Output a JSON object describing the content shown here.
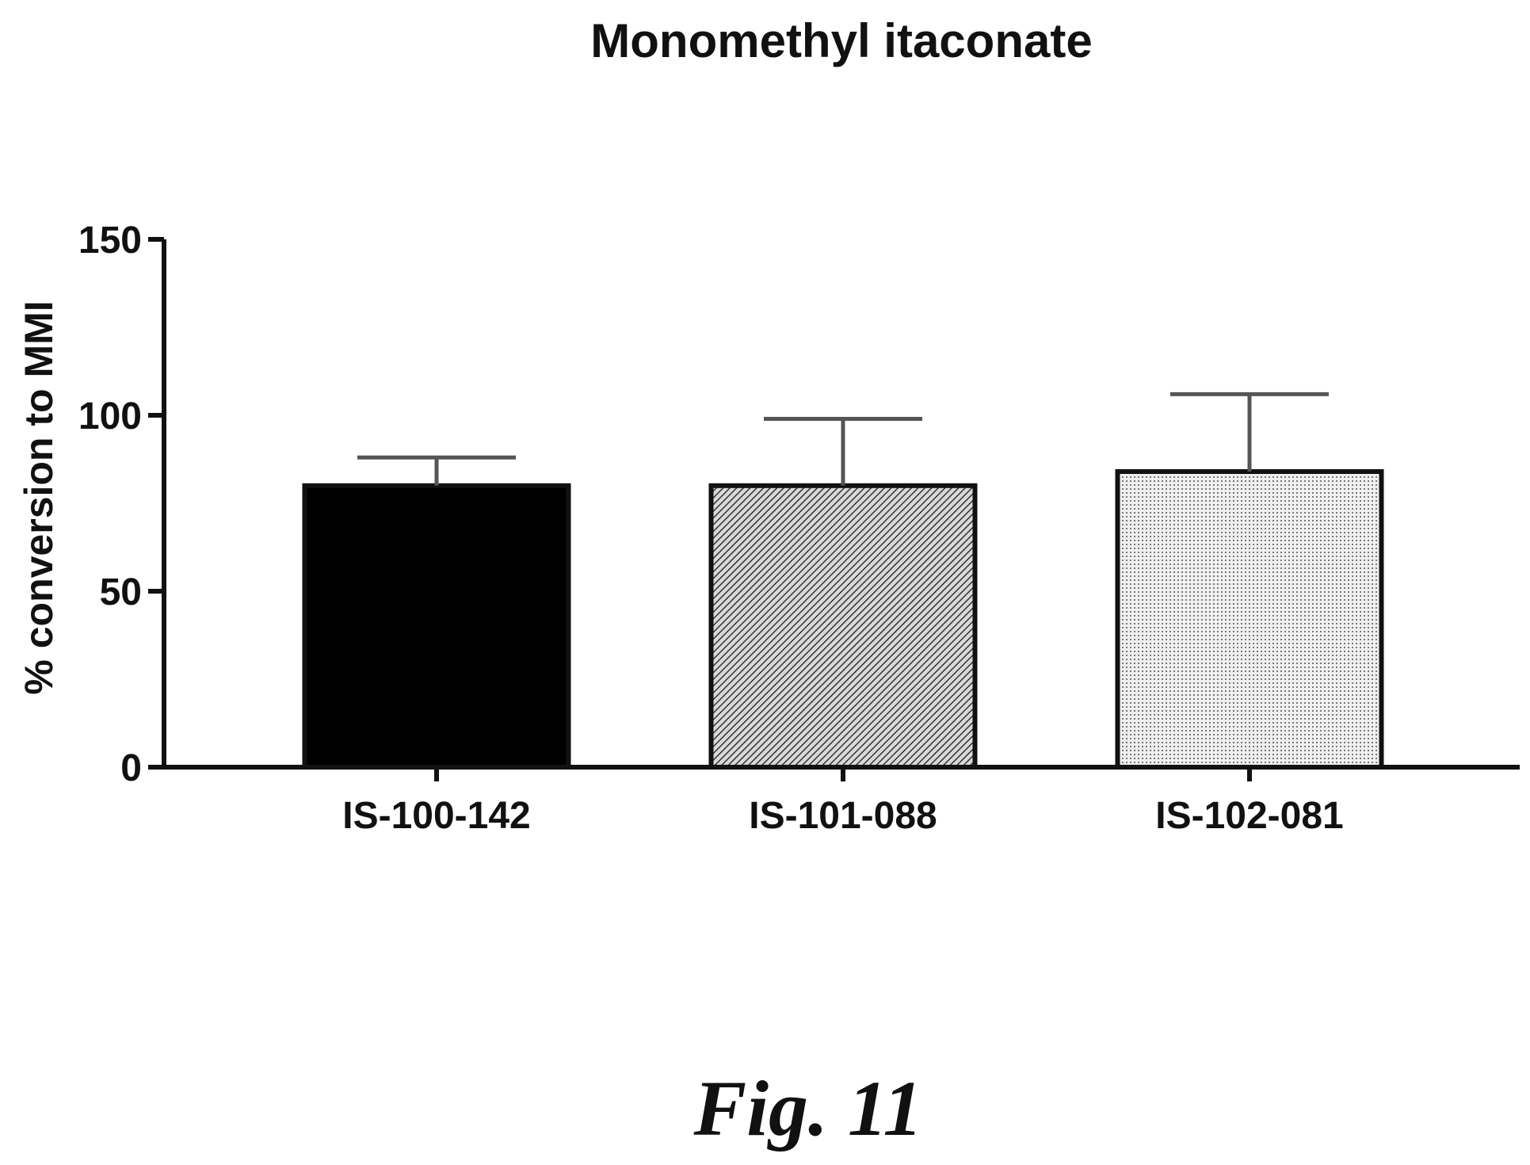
{
  "chart_data": {
    "type": "bar",
    "title": "Monomethyl itaconate",
    "ylabel": "% conversion to MMI",
    "xlabel": "",
    "categories": [
      "IS-100-142",
      "IS-101-088",
      "IS-102-081"
    ],
    "values": [
      80,
      80,
      84
    ],
    "error_upper": [
      88,
      99,
      106
    ],
    "ylim": [
      0,
      150
    ],
    "yticks": [
      0,
      50,
      100,
      150
    ],
    "bar_fills": [
      "solid-black",
      "dense-hatch",
      "fine-dots"
    ],
    "grid": false,
    "legend": "none"
  },
  "figure_label": "Fig. 11",
  "colors": {
    "ink": "#111111",
    "background": "#ffffff"
  }
}
